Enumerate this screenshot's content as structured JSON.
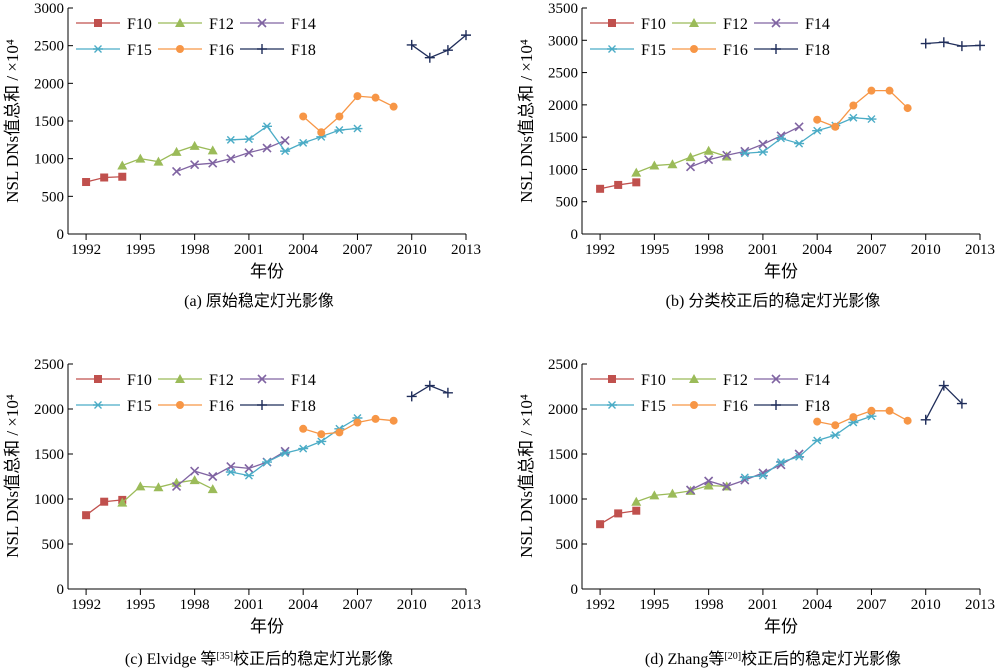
{
  "colors": {
    "F10": "#c0504d",
    "F12": "#9bbb59",
    "F14": "#8064a2",
    "F15": "#4bacc6",
    "F16": "#f79646",
    "F18": "#1f2d5a"
  },
  "chart_data": [
    {
      "type": "line",
      "caption": "(a) 原始稳定灯光影像",
      "xlabel": "年份",
      "ylabel": "NSL DNs值总和 / ×10⁴",
      "xlim": [
        1991,
        2013
      ],
      "ylim": [
        0,
        3000
      ],
      "xticks": [
        1992,
        1995,
        1998,
        2001,
        2004,
        2007,
        2010,
        2013
      ],
      "yticks": [
        0,
        500,
        1000,
        1500,
        2000,
        2500,
        3000
      ],
      "series": [
        {
          "name": "F10",
          "marker": "square",
          "x": [
            1992,
            1993,
            1994
          ],
          "y": [
            690,
            750,
            760
          ]
        },
        {
          "name": "F12",
          "marker": "triangle",
          "x": [
            1994,
            1995,
            1996,
            1997,
            1998,
            1999
          ],
          "y": [
            910,
            1000,
            960,
            1090,
            1170,
            1110
          ]
        },
        {
          "name": "F14",
          "marker": "x",
          "x": [
            1997,
            1998,
            1999,
            2000,
            2001,
            2002,
            2003
          ],
          "y": [
            830,
            920,
            940,
            1000,
            1080,
            1140,
            1240
          ]
        },
        {
          "name": "F15",
          "marker": "star",
          "x": [
            2000,
            2001,
            2002,
            2003,
            2004,
            2005,
            2006,
            2007
          ],
          "y": [
            1250,
            1260,
            1430,
            1100,
            1210,
            1290,
            1380,
            1400
          ]
        },
        {
          "name": "F16",
          "marker": "circle",
          "x": [
            2004,
            2005,
            2006,
            2007,
            2008,
            2009
          ],
          "y": [
            1560,
            1350,
            1560,
            1830,
            1810,
            1690
          ]
        },
        {
          "name": "F18",
          "marker": "plus",
          "x": [
            2010,
            2011,
            2012,
            2013
          ],
          "y": [
            2510,
            2340,
            2440,
            2640
          ]
        }
      ]
    },
    {
      "type": "line",
      "caption": "(b) 分类校正后的稳定灯光影像",
      "xlabel": "年份",
      "ylabel": "NSL DNs值总和 / ×10⁴",
      "xlim": [
        1991,
        2013
      ],
      "ylim": [
        0,
        3500
      ],
      "xticks": [
        1992,
        1995,
        1998,
        2001,
        2004,
        2007,
        2010,
        2013
      ],
      "yticks": [
        0,
        500,
        1000,
        1500,
        2000,
        2500,
        3000,
        3500
      ],
      "series": [
        {
          "name": "F10",
          "marker": "square",
          "x": [
            1992,
            1993,
            1994
          ],
          "y": [
            700,
            760,
            800
          ]
        },
        {
          "name": "F12",
          "marker": "triangle",
          "x": [
            1994,
            1995,
            1996,
            1997,
            1998,
            1999
          ],
          "y": [
            950,
            1060,
            1080,
            1190,
            1290,
            1200
          ]
        },
        {
          "name": "F14",
          "marker": "x",
          "x": [
            1997,
            1998,
            1999,
            2000,
            2001,
            2002,
            2003
          ],
          "y": [
            1040,
            1150,
            1220,
            1280,
            1390,
            1520,
            1660
          ]
        },
        {
          "name": "F15",
          "marker": "star",
          "x": [
            2000,
            2001,
            2002,
            2003,
            2004,
            2005,
            2006,
            2007
          ],
          "y": [
            1250,
            1270,
            1480,
            1400,
            1600,
            1680,
            1800,
            1780
          ]
        },
        {
          "name": "F16",
          "marker": "circle",
          "x": [
            2004,
            2005,
            2006,
            2007,
            2008,
            2009
          ],
          "y": [
            1770,
            1660,
            1990,
            2220,
            2220,
            1950
          ]
        },
        {
          "name": "F18",
          "marker": "plus",
          "x": [
            2010,
            2011,
            2012,
            2013
          ],
          "y": [
            2950,
            2970,
            2910,
            2920
          ]
        }
      ]
    },
    {
      "type": "line",
      "caption": "(c) Elvidge 等[35]校正后的稳定灯光影像",
      "caption_main": "(c) Elvidge 等",
      "caption_ref": "[35]",
      "caption_rest": "校正后的稳定灯光影像",
      "xlabel": "年份",
      "ylabel": "NSL DNs值总和 / ×10⁴",
      "xlim": [
        1991,
        2013
      ],
      "ylim": [
        0,
        2500
      ],
      "xticks": [
        1992,
        1995,
        1998,
        2001,
        2004,
        2007,
        2010,
        2013
      ],
      "yticks": [
        0,
        500,
        1000,
        1500,
        2000,
        2500
      ],
      "series": [
        {
          "name": "F10",
          "marker": "square",
          "x": [
            1992,
            1993,
            1994
          ],
          "y": [
            820,
            970,
            990
          ]
        },
        {
          "name": "F12",
          "marker": "triangle",
          "x": [
            1994,
            1995,
            1996,
            1997,
            1998,
            1999
          ],
          "y": [
            960,
            1140,
            1130,
            1180,
            1210,
            1110
          ]
        },
        {
          "name": "F14",
          "marker": "x",
          "x": [
            1997,
            1998,
            1999,
            2000,
            2001,
            2002,
            2003
          ],
          "y": [
            1140,
            1310,
            1250,
            1360,
            1340,
            1410,
            1530
          ]
        },
        {
          "name": "F15",
          "marker": "star",
          "x": [
            2000,
            2001,
            2002,
            2003,
            2004,
            2005,
            2006,
            2007
          ],
          "y": [
            1300,
            1260,
            1410,
            1510,
            1560,
            1640,
            1780,
            1900
          ]
        },
        {
          "name": "F16",
          "marker": "circle",
          "x": [
            2004,
            2005,
            2006,
            2007,
            2008,
            2009
          ],
          "y": [
            1780,
            1720,
            1740,
            1850,
            1890,
            1870
          ]
        },
        {
          "name": "F18",
          "marker": "plus",
          "x": [
            2010,
            2011,
            2012
          ],
          "y": [
            2140,
            2260,
            2180
          ]
        }
      ]
    },
    {
      "type": "line",
      "caption": "(d) Zhang等[20]校正后的稳定灯光影像",
      "caption_main": "(d) Zhang等",
      "caption_ref": "[20]",
      "caption_rest": "校正后的稳定灯光影像",
      "xlabel": "年份",
      "ylabel": "NSL DNs值总和 / ×10⁴",
      "xlim": [
        1991,
        2013
      ],
      "ylim": [
        0,
        2500
      ],
      "xticks": [
        1992,
        1995,
        1998,
        2001,
        2004,
        2007,
        2010,
        2013
      ],
      "yticks": [
        0,
        500,
        1000,
        1500,
        2000,
        2500
      ],
      "series": [
        {
          "name": "F10",
          "marker": "square",
          "x": [
            1992,
            1993,
            1994
          ],
          "y": [
            720,
            840,
            870
          ]
        },
        {
          "name": "F12",
          "marker": "triangle",
          "x": [
            1994,
            1995,
            1996,
            1997,
            1998,
            1999
          ],
          "y": [
            970,
            1040,
            1060,
            1090,
            1150,
            1140
          ]
        },
        {
          "name": "F14",
          "marker": "x",
          "x": [
            1997,
            1998,
            1999,
            2000,
            2001,
            2002,
            2003
          ],
          "y": [
            1100,
            1200,
            1140,
            1210,
            1290,
            1380,
            1500
          ]
        },
        {
          "name": "F15",
          "marker": "star",
          "x": [
            2000,
            2001,
            2002,
            2003,
            2004,
            2005,
            2006,
            2007
          ],
          "y": [
            1240,
            1260,
            1410,
            1470,
            1650,
            1710,
            1850,
            1920
          ]
        },
        {
          "name": "F16",
          "marker": "circle",
          "x": [
            2004,
            2005,
            2006,
            2007,
            2008,
            2009
          ],
          "y": [
            1860,
            1820,
            1910,
            1980,
            1980,
            1870
          ]
        },
        {
          "name": "F18",
          "marker": "plus",
          "x": [
            2010,
            2011,
            2012
          ],
          "y": [
            1880,
            2260,
            2060
          ]
        }
      ]
    }
  ]
}
